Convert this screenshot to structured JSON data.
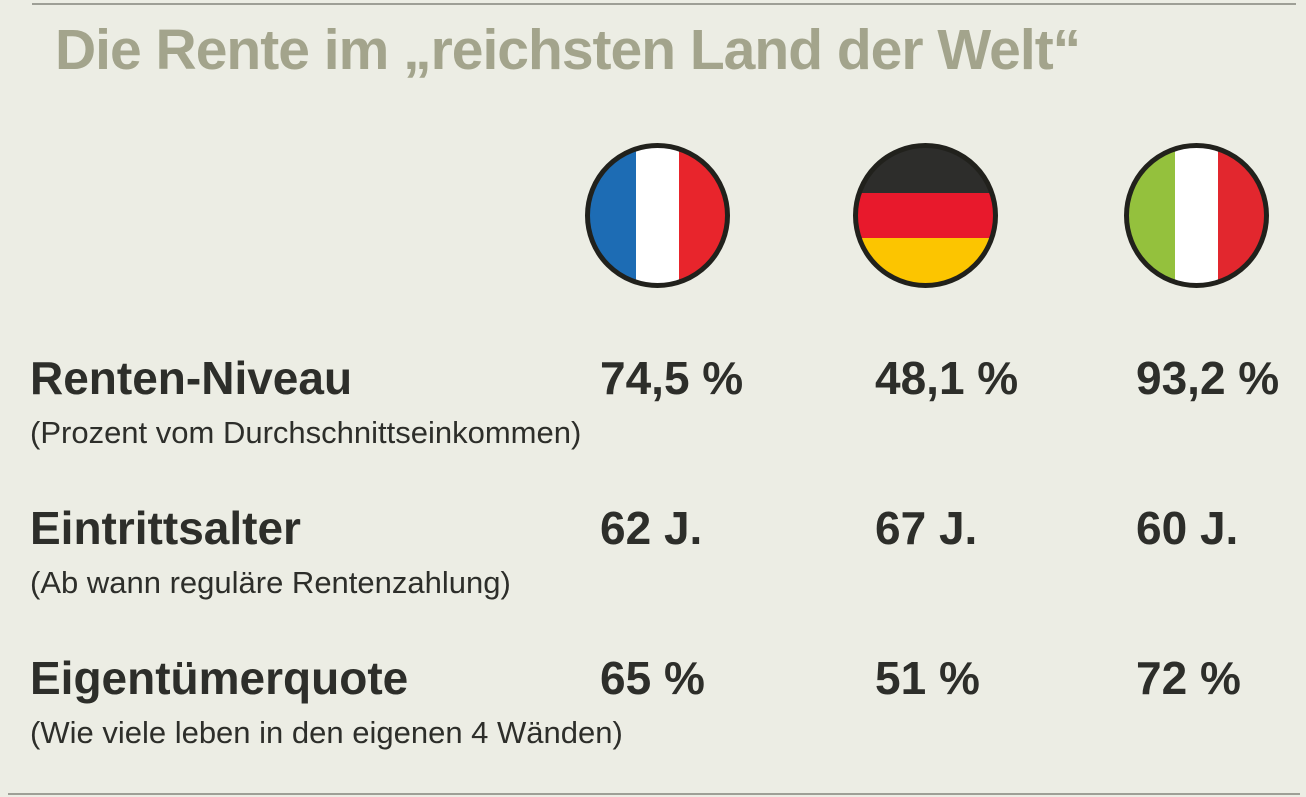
{
  "title": "Die Rente im „reichsten Land der Welt“",
  "colors": {
    "background": "#ecede4",
    "title_text": "#a3a48c",
    "body_text": "#2d2e2a",
    "flag_border": "#21211c",
    "edge_line": "#8b8b82",
    "france_flag": [
      "#1d6cb4",
      "#ffffff",
      "#e8252c"
    ],
    "germany_flag": [
      "#2d2d2b",
      "#e8192c",
      "#fcc500"
    ],
    "italy_flag": [
      "#94c13d",
      "#ffffff",
      "#e2272e"
    ]
  },
  "flags": [
    {
      "icon": "france-flag-icon"
    },
    {
      "icon": "germany-flag-icon"
    },
    {
      "icon": "italy-flag-icon"
    }
  ],
  "rows": [
    {
      "label": "Renten-Niveau",
      "sublabel": "(Prozent vom Durchschnittseinkommen)",
      "values": [
        "74,5 %",
        "48,1 %",
        "93,2 %"
      ]
    },
    {
      "label": "Eintrittsalter",
      "sublabel": "(Ab wann reguläre Rentenzahlung)",
      "values": [
        "62 J.",
        "67 J.",
        "60 J."
      ]
    },
    {
      "label": "Eigentümerquote",
      "sublabel": "(Wie viele leben in den eigenen 4 Wänden)",
      "values": [
        "65 %",
        "51 %",
        "72 %"
      ]
    }
  ],
  "chart_data": {
    "type": "table",
    "title": "Die Rente im „reichsten Land der Welt“",
    "columns": [
      "France",
      "Germany",
      "Italy"
    ],
    "column_icons": [
      "france-flag-icon",
      "germany-flag-icon",
      "italy-flag-icon"
    ],
    "rows": [
      {
        "label": "Renten-Niveau",
        "note": "(Prozent vom Durchschnittseinkommen)",
        "unit": "%",
        "values": [
          74.5,
          48.1,
          93.2
        ]
      },
      {
        "label": "Eintrittsalter",
        "note": "(Ab wann reguläre Rentenzahlung)",
        "unit": "J.",
        "values": [
          62,
          67,
          60
        ]
      },
      {
        "label": "Eigentümerquote",
        "note": "(Wie viele leben in den eigenen 4 Wänden)",
        "unit": "%",
        "values": [
          65,
          51,
          72
        ]
      }
    ]
  }
}
